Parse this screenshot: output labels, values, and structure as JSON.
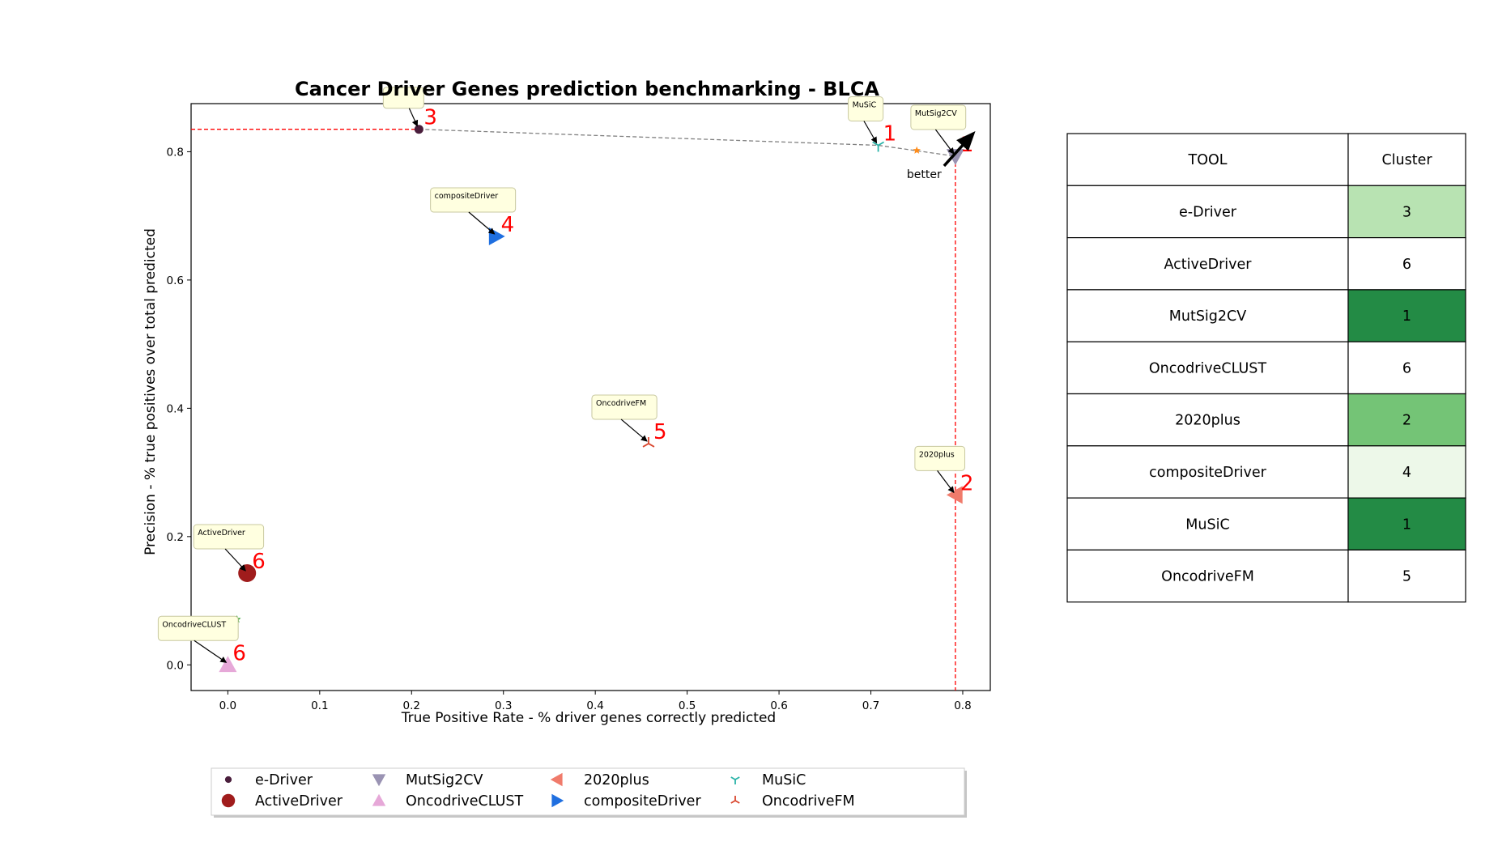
{
  "chart_data": {
    "type": "scatter",
    "title": "Cancer Driver Genes prediction benchmarking - BLCA",
    "xlabel": "True Positive Rate - % driver genes correctly predicted",
    "ylabel": "Precision - % true positives over total predicted",
    "xlim": [
      -0.04,
      0.83
    ],
    "ylim": [
      -0.04,
      0.875
    ],
    "xticks": [
      0.0,
      0.1,
      0.2,
      0.3,
      0.4,
      0.5,
      0.6,
      0.7,
      0.8
    ],
    "xtick_labels": [
      "0.0",
      "0.1",
      "0.2",
      "0.3",
      "0.4",
      "0.5",
      "0.6",
      "0.7",
      "0.8"
    ],
    "yticks": [
      0.0,
      0.2,
      0.4,
      0.6,
      0.8
    ],
    "ytick_labels": [
      "0.0",
      "0.2",
      "0.4",
      "0.6",
      "0.8"
    ],
    "grid": false,
    "legend_position": "bottom",
    "series": [
      {
        "name": "e-Driver",
        "x": 0.208,
        "y": 0.835,
        "marker": "circle-small",
        "color": "#4a1e3c",
        "cluster": "3",
        "label_visible": false
      },
      {
        "name": "ActiveDriver",
        "x": 0.021,
        "y": 0.143,
        "marker": "circle",
        "color": "#a01c1c",
        "cluster": "6",
        "label_visible": true
      },
      {
        "name": "MutSig2CV",
        "x": 0.792,
        "y": 0.793,
        "marker": "triangle-down",
        "color": "#9a93b3",
        "cluster": "1",
        "label_visible": true
      },
      {
        "name": "OncodriveCLUST",
        "x": 0.0,
        "y": 0.0,
        "marker": "triangle-up",
        "color": "#e6a8d8",
        "cluster": "6",
        "label_visible": true
      },
      {
        "name": "2020plus",
        "x": 0.792,
        "y": 0.265,
        "marker": "triangle-left",
        "color": "#f07b6b",
        "cluster": "2",
        "label_visible": true
      },
      {
        "name": "compositeDriver",
        "x": 0.292,
        "y": 0.668,
        "marker": "triangle-right",
        "color": "#1f6fe0",
        "cluster": "4",
        "label_visible": true
      },
      {
        "name": "MuSiC",
        "x": 0.708,
        "y": 0.81,
        "marker": "tri-down",
        "color": "#2ab3a8",
        "cluster": "1",
        "label_visible": true
      },
      {
        "name": "OncodriveFM",
        "x": 0.458,
        "y": 0.345,
        "marker": "tri-up",
        "color": "#d9472f",
        "cluster": "5",
        "label_visible": true
      }
    ],
    "extra_points": [
      {
        "x": 0.75,
        "y": 0.802,
        "marker": "star",
        "color": "#ff8c1a"
      },
      {
        "x": 0.01,
        "y": 0.071,
        "marker": "star",
        "color": "#2ca02c"
      }
    ],
    "pareto_front": [
      [
        0.208,
        0.835
      ],
      [
        0.708,
        0.81
      ],
      [
        0.792,
        0.793
      ]
    ],
    "reference_lines": {
      "max_precision": 0.835,
      "max_tpr": 0.792
    },
    "better_annotation": "better",
    "table": {
      "headers": [
        "TOOL",
        "Cluster"
      ],
      "rows": [
        {
          "tool": "e-Driver",
          "cluster": "3",
          "color": "#b8e3b2"
        },
        {
          "tool": "ActiveDriver",
          "cluster": "6",
          "color": "#ffffff"
        },
        {
          "tool": "MutSig2CV",
          "cluster": "1",
          "color": "#238b45"
        },
        {
          "tool": "OncodriveCLUST",
          "cluster": "6",
          "color": "#ffffff"
        },
        {
          "tool": "2020plus",
          "cluster": "2",
          "color": "#74c476"
        },
        {
          "tool": "compositeDriver",
          "cluster": "4",
          "color": "#edf8e9"
        },
        {
          "tool": "MuSiC",
          "cluster": "1",
          "color": "#238b45"
        },
        {
          "tool": "OncodriveFM",
          "cluster": "5",
          "color": "#ffffff"
        }
      ]
    }
  }
}
